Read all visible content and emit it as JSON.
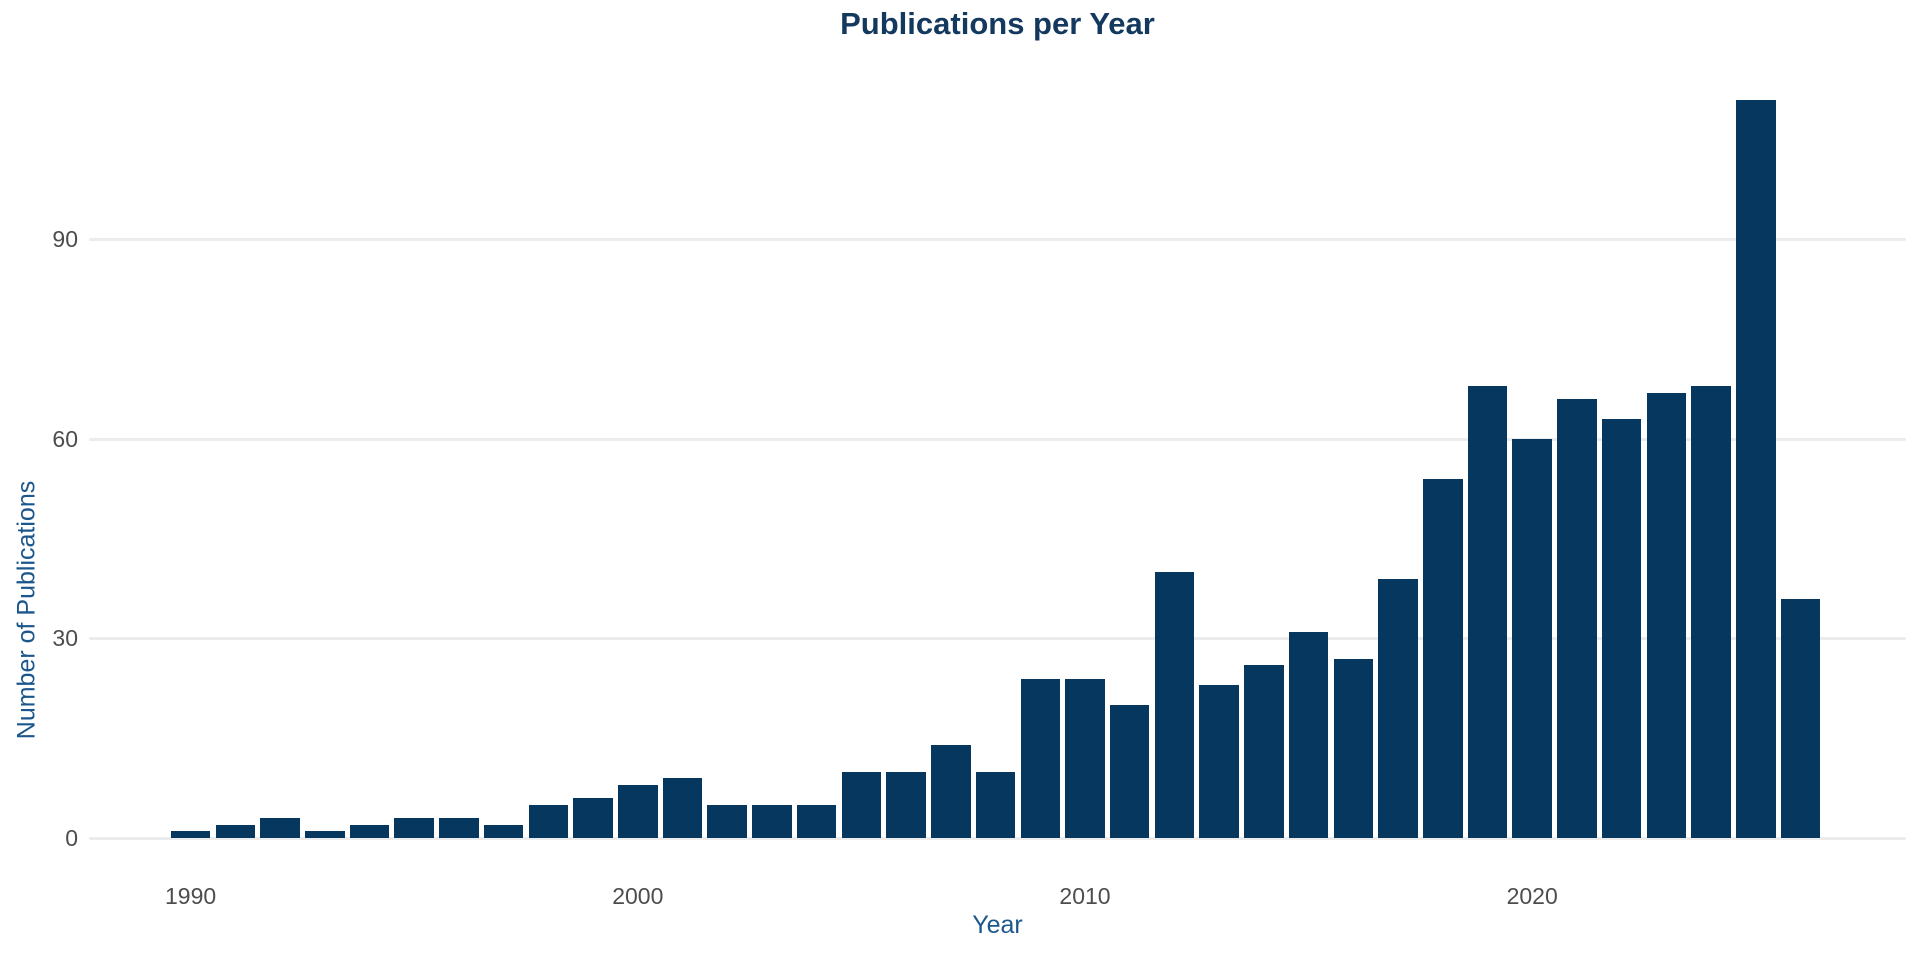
{
  "title": "Publications per Year",
  "colors": {
    "bar": "#06385f",
    "title_text": "#14395f",
    "axis_title_text": "#1b568c",
    "tick_text": "#4d4d4d",
    "gridline": "#ececec",
    "background": "#ffffff"
  },
  "chart_data": {
    "type": "bar",
    "title": "Publications per Year",
    "xlabel": "Year",
    "ylabel": "Number of Publications",
    "categories": [
      1990,
      1991,
      1992,
      1993,
      1994,
      1995,
      1996,
      1997,
      1998,
      1999,
      2000,
      2001,
      2002,
      2003,
      2004,
      2005,
      2006,
      2007,
      2008,
      2009,
      2010,
      2011,
      2012,
      2013,
      2014,
      2015,
      2016,
      2017,
      2018,
      2019,
      2020,
      2021,
      2022,
      2023,
      2024,
      2025,
      2026
    ],
    "values": [
      1,
      2,
      3,
      1,
      2,
      3,
      3,
      2,
      5,
      6,
      8,
      9,
      5,
      5,
      5,
      10,
      10,
      14,
      10,
      24,
      24,
      20,
      40,
      23,
      26,
      31,
      27,
      39,
      54,
      68,
      60,
      66,
      63,
      67,
      68,
      111,
      36
    ],
    "ylim": [
      0,
      120
    ],
    "y_ticks": [
      0,
      30,
      60,
      90
    ],
    "x_ticks": [
      1990,
      2000,
      2010,
      2020
    ],
    "grid": "horizontal-only",
    "legend": "none"
  }
}
